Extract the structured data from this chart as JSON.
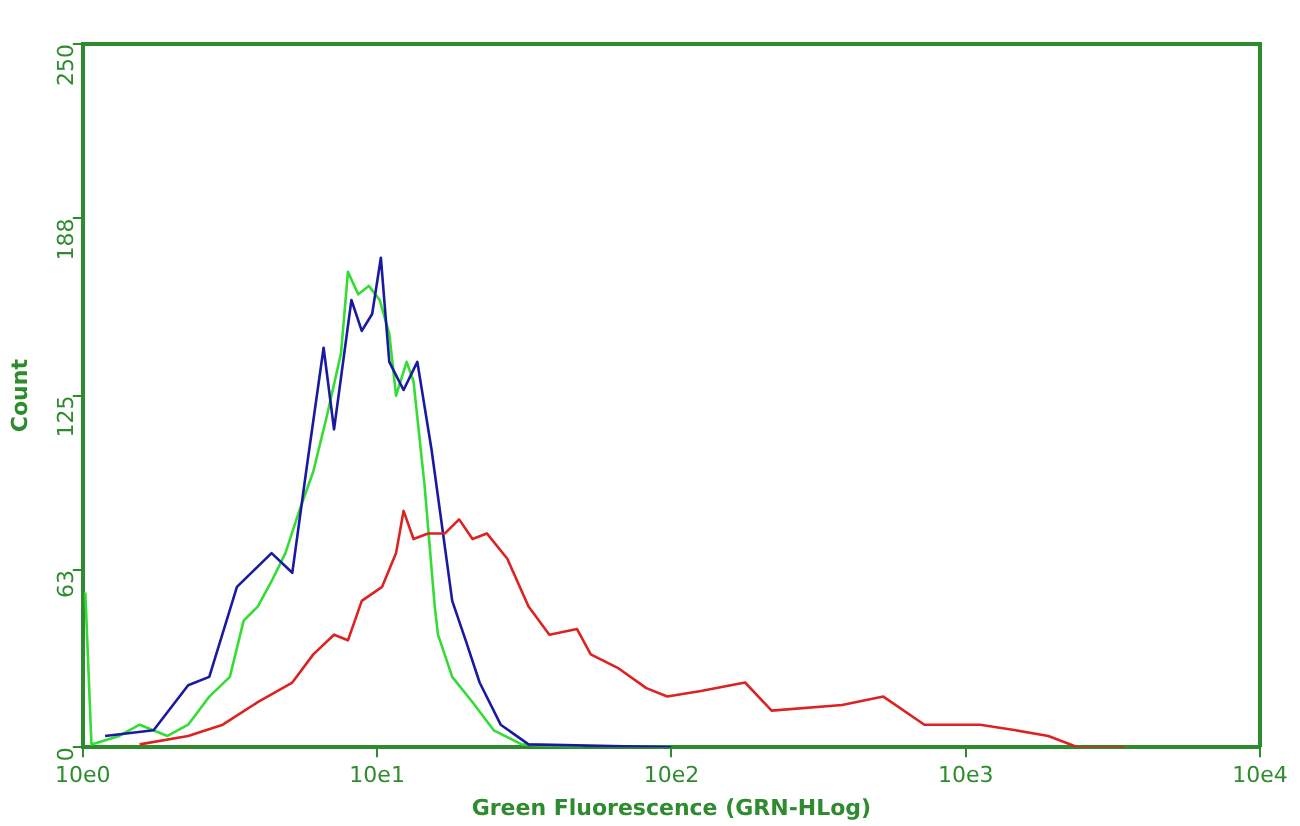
{
  "chart_data": {
    "type": "line",
    "xlabel": "Green Fluorescence (GRN-HLog)",
    "ylabel": "Count",
    "log": "x",
    "grid": false,
    "legend": false,
    "marker": "none",
    "line_style": "solid",
    "xlim": [
      10,
      100000
    ],
    "xticks": [
      {
        "value": 10,
        "label": "10e0"
      },
      {
        "value": 100,
        "label": "10e1"
      },
      {
        "value": 1000,
        "label": "10e2"
      },
      {
        "value": 10000,
        "label": "10e3"
      },
      {
        "value": 100000,
        "label": "10e4"
      }
    ],
    "ylim": [
      0,
      250
    ],
    "yticks": [
      0,
      63,
      125,
      188,
      250
    ],
    "series": [
      {
        "color": "#dd2222",
        "x": [
          15.6,
          22.8,
          29.9,
          39.3,
          51.5,
          60.7,
          71.4,
          79.6,
          88.7,
          104,
          116,
          123,
          133,
          149,
          170,
          190,
          211,
          236,
          277,
          327,
          385,
          478,
          532,
          662,
          822,
          968,
          1260,
          1780,
          2190,
          3800,
          5250,
          7240,
          11200,
          14800,
          19100,
          24000,
          34700
        ],
        "values": [
          1,
          4,
          8,
          16,
          23,
          33,
          40,
          38,
          52,
          57,
          69,
          84,
          74,
          76,
          76,
          81,
          74,
          76,
          67,
          50,
          40,
          42,
          33,
          28,
          21,
          18,
          20,
          23,
          13,
          15,
          18,
          8,
          8,
          6,
          4,
          0,
          0
        ]
      },
      {
        "color": "#1a1aa0",
        "x": [
          11.9,
          17.4,
          22.8,
          26.9,
          33.4,
          43.8,
          51.5,
          57.4,
          65.8,
          71.4,
          81.8,
          88.7,
          96.2,
          103,
          110,
          123,
          137,
          153,
          166,
          180,
          200,
          223,
          263,
          327,
          1000
        ],
        "values": [
          4,
          6,
          22,
          25,
          57,
          69,
          62,
          98,
          142,
          113,
          159,
          148,
          154,
          174,
          137,
          127,
          137,
          106,
          79,
          52,
          38,
          23,
          8,
          1,
          0
        ]
      },
      {
        "color": "#33dd33",
        "x": [
          10.2,
          10.7,
          13.3,
          15.6,
          19.4,
          22.8,
          26.9,
          31.6,
          35.2,
          39.3,
          43.8,
          48.8,
          54.4,
          60.7,
          67.6,
          75.4,
          79.6,
          86.3,
          93.7,
          102,
          110,
          116,
          126,
          133,
          145,
          157,
          161,
          180,
          211,
          249,
          310,
          500
        ],
        "values": [
          55,
          1,
          4,
          8,
          4,
          8,
          18,
          25,
          45,
          50,
          59,
          69,
          84,
          98,
          118,
          140,
          169,
          161,
          164,
          159,
          147,
          125,
          137,
          130,
          93,
          50,
          40,
          25,
          16,
          6,
          1,
          0
        ]
      }
    ]
  }
}
